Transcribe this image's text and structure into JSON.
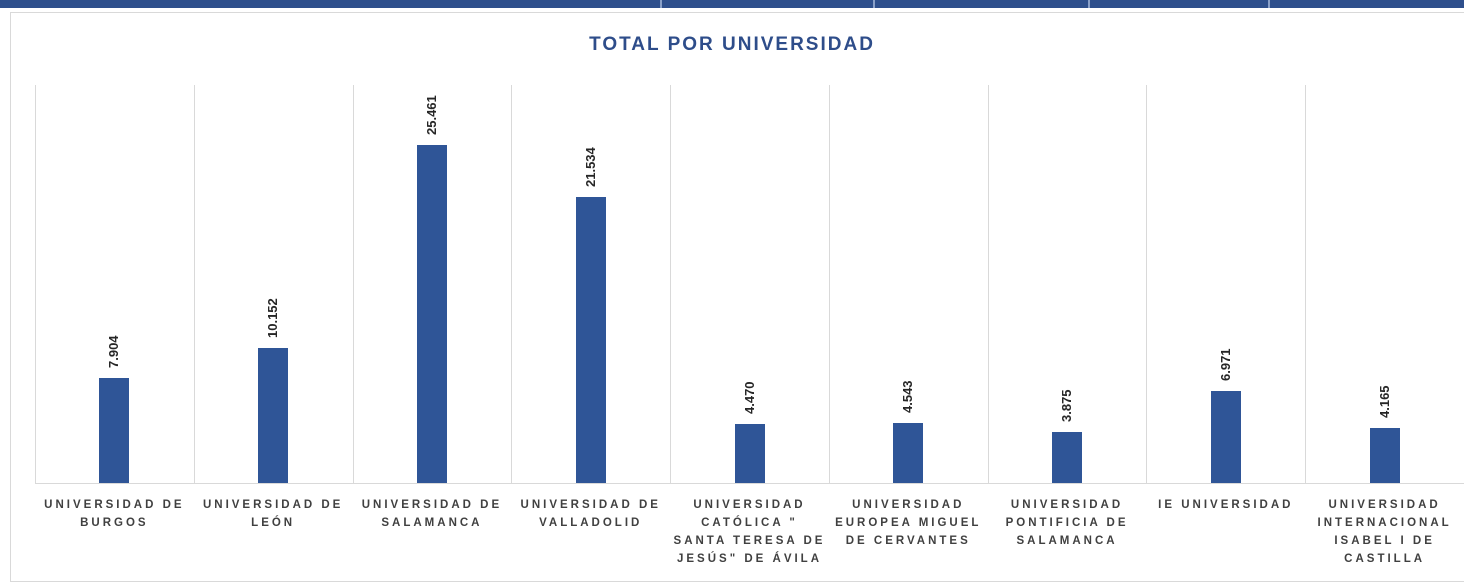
{
  "chart_data": {
    "type": "bar",
    "title": "TOTAL POR UNIVERSIDAD",
    "categories": [
      "UNIVERSIDAD DE BURGOS",
      "UNIVERSIDAD DE LEÓN",
      "UNIVERSIDAD DE SALAMANCA",
      "UNIVERSIDAD DE VALLADOLID",
      "UNIVERSIDAD CATÓLICA \" SANTA TERESA DE JESÚS\" DE ÁVILA",
      "UNIVERSIDAD EUROPEA MIGUEL DE CERVANTES",
      "UNIVERSIDAD PONTIFICIA DE SALAMANCA",
      "IE UNIVERSIDAD",
      "UNIVERSIDAD INTERNACIONAL ISABEL I DE CASTILLA"
    ],
    "values": [
      7904,
      10152,
      25461,
      21534,
      4470,
      4543,
      3875,
      6971,
      4165
    ],
    "value_labels": [
      "7.904",
      "10.152",
      "25.461",
      "21.534",
      "4.470",
      "4.543",
      "3.875",
      "6.971",
      "4.165"
    ],
    "color": "#2f5597",
    "ylim": [
      0,
      30000
    ]
  }
}
